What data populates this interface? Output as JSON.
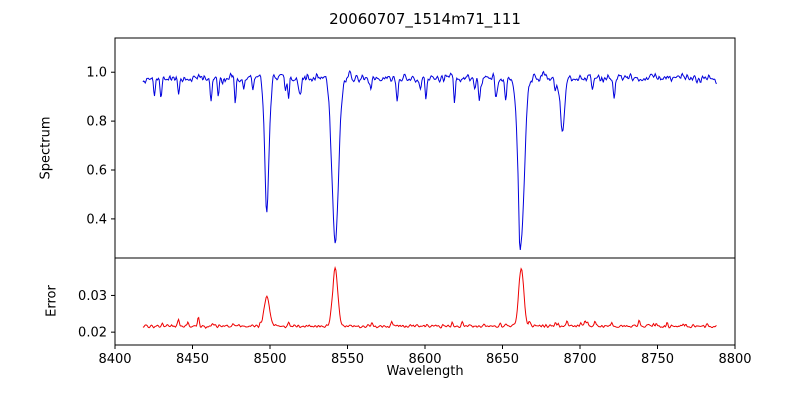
{
  "chart_data": {
    "type": "line",
    "title": "20060707_1514m71_111",
    "xlabel": "Wavelength",
    "xlim": [
      8400,
      8800
    ],
    "x_ticks": [
      {
        "v": 8400,
        "label": "8400"
      },
      {
        "v": 8450,
        "label": "8450"
      },
      {
        "v": 8500,
        "label": "8500"
      },
      {
        "v": 8550,
        "label": "8550"
      },
      {
        "v": 8600,
        "label": "8600"
      },
      {
        "v": 8650,
        "label": "8650"
      },
      {
        "v": 8700,
        "label": "8700"
      },
      {
        "v": 8750,
        "label": "8750"
      },
      {
        "v": 8800,
        "label": "8800"
      }
    ],
    "x_data_range": [
      8418,
      8788
    ],
    "x_step": 0.5,
    "seed": 11,
    "grid": false,
    "legend": "none",
    "panels": [
      {
        "name": "spectrum",
        "ylabel": "Spectrum",
        "ylim": [
          0.24,
          1.14
        ],
        "y_ticks": [
          {
            "v": 0.4,
            "label": "0.4"
          },
          {
            "v": 0.6,
            "label": "0.6"
          },
          {
            "v": 0.8,
            "label": "0.8"
          },
          {
            "v": 1.0,
            "label": "1.0"
          }
        ],
        "color": "#0000dd",
        "model": {
          "continuum": 0.975,
          "noise_sigma": 0.013,
          "dip_probability": 0.05,
          "dip_depth_min": 0.03,
          "dip_depth_max": 0.15,
          "absorption_lines": [
            {
              "center": 8498.0,
              "depth": 0.52,
              "sigma": 1.4
            },
            {
              "center": 8542.1,
              "depth": 0.67,
              "sigma": 2.1
            },
            {
              "center": 8662.1,
              "depth": 0.66,
              "sigma": 2.0
            },
            {
              "center": 8688.6,
              "depth": 0.25,
              "sigma": 1.3
            }
          ]
        }
      },
      {
        "name": "error",
        "ylabel": "Error",
        "ylim": [
          0.0165,
          0.0402
        ],
        "y_ticks": [
          {
            "v": 0.02,
            "label": "0.02"
          },
          {
            "v": 0.03,
            "label": "0.03"
          }
        ],
        "color": "#ee0000",
        "model": {
          "baseline": 0.0213,
          "noise_sigma": 0.0004,
          "bump_probability": 0.06,
          "bump_max": 0.0022,
          "peaks": [
            {
              "center": 8498.0,
              "height": 0.0085,
              "sigma": 1.6
            },
            {
              "center": 8542.1,
              "height": 0.016,
              "sigma": 1.6
            },
            {
              "center": 8662.1,
              "height": 0.016,
              "sigma": 1.6
            }
          ]
        }
      }
    ]
  }
}
